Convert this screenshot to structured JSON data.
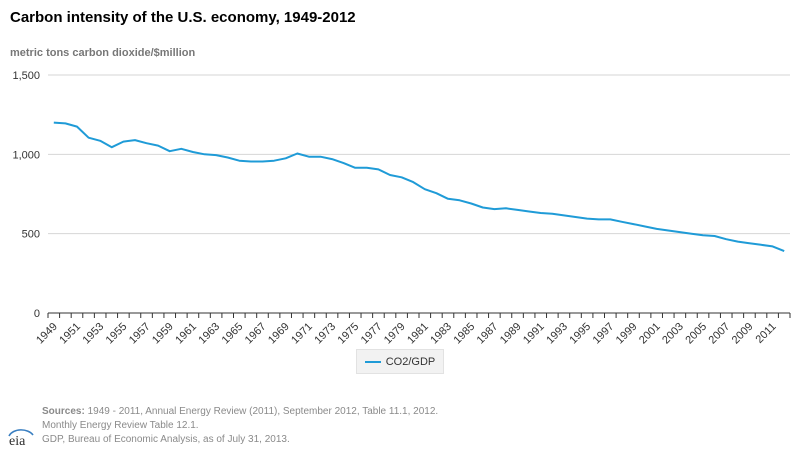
{
  "title": "Carbon intensity of the U.S. economy, 1949-2012",
  "unit_label": "metric tons carbon dioxide/$million",
  "legend_label": "CO2/GDP",
  "sources": {
    "label": "Sources:",
    "line1": "1949 - 2011, Annual Energy Review (2011), September 2012, Table 11.1, 2012.",
    "line2": "Monthly Energy Review Table 12.1.",
    "line3": "GDP, Bureau of Economic Analysis, as of July 31, 2013."
  },
  "logo_text": "eia",
  "colors": {
    "series": "#1f9bd7",
    "grid": "#d6d6d6",
    "axis": "#333333"
  },
  "chart_data": {
    "type": "line",
    "title": "Carbon intensity of the U.S. economy, 1949-2012",
    "ylabel": "metric tons carbon dioxide/$million",
    "ylim": [
      0,
      1500
    ],
    "yticks": [
      0,
      500,
      1000,
      1500
    ],
    "ytick_labels": [
      "0",
      "500",
      "1,000",
      "1,500"
    ],
    "xtick_labels": [
      "1949",
      "1951",
      "1953",
      "1955",
      "1957",
      "1959",
      "1961",
      "1963",
      "1965",
      "1967",
      "1969",
      "1971",
      "1973",
      "1975",
      "1977",
      "1979",
      "1981",
      "1983",
      "1985",
      "1987",
      "1989",
      "1991",
      "1993",
      "1995",
      "1997",
      "1999",
      "2001",
      "2003",
      "2005",
      "2007",
      "2009",
      "2011"
    ],
    "grid": true,
    "legend_position": "bottom",
    "x": [
      1949,
      1950,
      1951,
      1952,
      1953,
      1954,
      1955,
      1956,
      1957,
      1958,
      1959,
      1960,
      1961,
      1962,
      1963,
      1964,
      1965,
      1966,
      1967,
      1968,
      1969,
      1970,
      1971,
      1972,
      1973,
      1974,
      1975,
      1976,
      1977,
      1978,
      1979,
      1980,
      1981,
      1982,
      1983,
      1984,
      1985,
      1986,
      1987,
      1988,
      1989,
      1990,
      1991,
      1992,
      1993,
      1994,
      1995,
      1996,
      1997,
      1998,
      1999,
      2000,
      2001,
      2002,
      2003,
      2004,
      2005,
      2006,
      2007,
      2008,
      2009,
      2010,
      2011,
      2012
    ],
    "series": [
      {
        "name": "CO2/GDP",
        "values": [
          1200,
          1195,
          1175,
          1105,
          1085,
          1045,
          1080,
          1090,
          1070,
          1055,
          1020,
          1035,
          1015,
          1000,
          995,
          980,
          960,
          955,
          955,
          960,
          975,
          1005,
          985,
          985,
          970,
          945,
          915,
          915,
          905,
          870,
          855,
          825,
          780,
          755,
          720,
          710,
          690,
          665,
          655,
          660,
          650,
          640,
          630,
          625,
          615,
          605,
          595,
          590,
          590,
          575,
          560,
          545,
          530,
          520,
          510,
          500,
          490,
          485,
          465,
          450,
          440,
          430,
          420,
          390
        ]
      }
    ]
  }
}
